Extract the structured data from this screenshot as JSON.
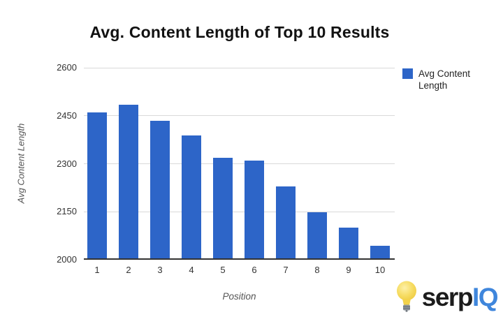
{
  "title": "Avg. Content Length of Top 10 Results",
  "chart_data": {
    "type": "bar",
    "title": "Avg. Content Length of Top 10 Results",
    "xlabel": "Position",
    "ylabel": "Avg Content Length",
    "categories": [
      "1",
      "2",
      "3",
      "4",
      "5",
      "6",
      "7",
      "8",
      "9",
      "10"
    ],
    "series": [
      {
        "name": "Avg Content Length",
        "values": [
          2455,
          2480,
          2430,
          2385,
          2315,
          2305,
          2225,
          2145,
          2095,
          2040
        ]
      }
    ],
    "ylim": [
      2000,
      2600
    ],
    "yticks": [
      2000,
      2150,
      2300,
      2450,
      2600
    ],
    "grid": true,
    "legend_position": "right",
    "bar_color": "#2d65c8",
    "gridline_color": "#d9d9d9",
    "axis_line_color": "#333333"
  },
  "legend": {
    "label": "Avg Content Length",
    "swatch_color": "#2d65c8"
  },
  "logo": {
    "serp_text": "serp",
    "iq_text": "IQ",
    "serp_color": "#1c1c1c",
    "iq_color": "#3f86dc",
    "bulb_icon": "lightbulb-icon"
  }
}
